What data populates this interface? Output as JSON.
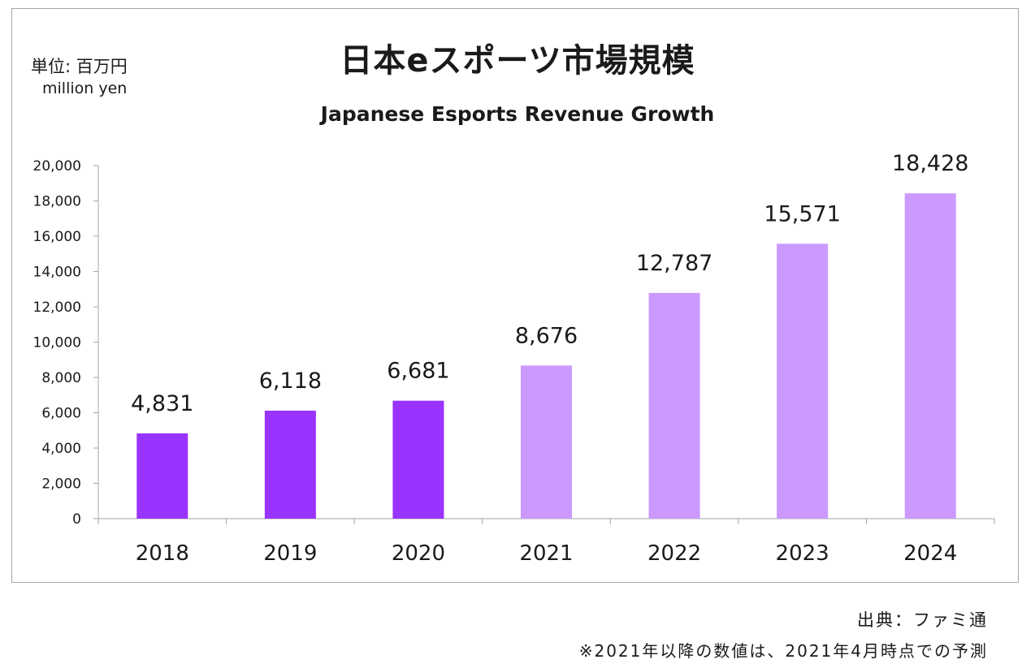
{
  "chart_data": {
    "type": "bar",
    "title": "日本eスポーツ市場規模",
    "subtitle": "Japanese Esports Revenue Growth",
    "unit_label_ja": "単位: 百万円",
    "unit_label_en": "million yen",
    "categories": [
      "2018",
      "2019",
      "2020",
      "2021",
      "2022",
      "2023",
      "2024"
    ],
    "values": [
      4831,
      6118,
      6681,
      8676,
      12787,
      15571,
      18428
    ],
    "value_labels": [
      "4,831",
      "6,118",
      "6,681",
      "8,676",
      "12,787",
      "15,571",
      "18,428"
    ],
    "forecast_from_index": 3,
    "yticks": [
      "0",
      "2,000",
      "4,000",
      "6,000",
      "8,000",
      "10,000",
      "12,000",
      "14,000",
      "16,000",
      "18,000",
      "20,000"
    ],
    "ylim": [
      0,
      20000
    ],
    "grid": false,
    "colors": {
      "actual": "#9933ff",
      "forecast": "#cc99ff",
      "axis": "#a6a6a6"
    }
  },
  "footer": {
    "source": "出典：ファミ通",
    "note": "※2021年以降の数値は、2021年4月時点での予測"
  }
}
